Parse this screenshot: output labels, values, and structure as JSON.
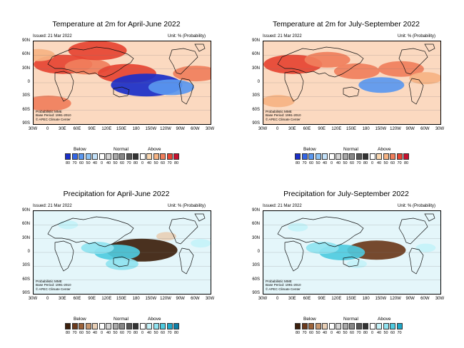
{
  "panels": [
    {
      "title": "Temperature at 2m for April-June 2022",
      "issued": "Issued: 21 Mar 2022",
      "unit": "Unit: % (Probability)",
      "footnote": [
        "Probabilistic MME",
        "Base Period: 1991-2010",
        "© APEC Climate Center"
      ],
      "variable": "temperature",
      "legend": {
        "below": "Below",
        "normal": "Normal",
        "above": "Above",
        "ticks": [
          "80",
          "70",
          "60",
          "50",
          "40",
          "0",
          "40",
          "50",
          "60",
          "70",
          "80",
          "0",
          "40",
          "50",
          "60",
          "70",
          "80"
        ],
        "colors": [
          "#1a2fc9",
          "#3366e6",
          "#5a98f0",
          "#8ec4f5",
          "#c4e2fa",
          "#ffffff",
          "#d6d6d6",
          "#aaaaaa",
          "#888888",
          "#555555",
          "#333333",
          "#ffffff",
          "#f9d7b0",
          "#f6b383",
          "#f07f5c",
          "#e64432",
          "#c8102e"
        ]
      },
      "map_data": {
        "patches": [
          {
            "lon": 30,
            "lat": 40,
            "anomaly": "above",
            "prob": 70
          },
          {
            "lon": 80,
            "lat": 35,
            "anomaly": "above",
            "prob": 60
          },
          {
            "lon": 100,
            "lat": 70,
            "anomaly": "above",
            "prob": 70
          },
          {
            "lon": 160,
            "lat": 20,
            "anomaly": "above",
            "prob": 70
          },
          {
            "lon": 200,
            "lat": -5,
            "anomaly": "below",
            "prob": 80
          },
          {
            "lon": 250,
            "lat": -10,
            "anomaly": "below",
            "prob": 60
          },
          {
            "lon": 300,
            "lat": 20,
            "anomaly": "above",
            "prob": 60
          },
          {
            "lon": 0,
            "lat": -45,
            "anomaly": "above",
            "prob": 60
          },
          {
            "lon": 340,
            "lat": 60,
            "anomaly": "above",
            "prob": 50
          }
        ]
      }
    },
    {
      "title": "Temperature at 2m for July-September 2022",
      "issued": "Issued: 21 Mar 2022",
      "unit": "Unit: % (Probability)",
      "footnote": [
        "Probabilistic MME",
        "Base Period: 1991-2010",
        "© APEC Climate Center"
      ],
      "variable": "temperature",
      "legend": {
        "below": "Below",
        "normal": "Normal",
        "above": "Above",
        "ticks": [
          "80",
          "70",
          "60",
          "50",
          "40",
          "0",
          "40",
          "50",
          "60",
          "70",
          "80",
          "0",
          "40",
          "50",
          "60",
          "70",
          "80"
        ],
        "colors": [
          "#1a2fc9",
          "#3366e6",
          "#5a98f0",
          "#8ec4f5",
          "#c4e2fa",
          "#ffffff",
          "#d6d6d6",
          "#aaaaaa",
          "#888888",
          "#555555",
          "#333333",
          "#ffffff",
          "#f9d7b0",
          "#f6b383",
          "#f07f5c",
          "#e64432",
          "#c8102e"
        ]
      },
      "map_data": {
        "patches": [
          {
            "lon": 30,
            "lat": 40,
            "anomaly": "above",
            "prob": 70
          },
          {
            "lon": 100,
            "lat": 50,
            "anomaly": "above",
            "prob": 60
          },
          {
            "lon": 160,
            "lat": 25,
            "anomaly": "above",
            "prob": 60
          },
          {
            "lon": 210,
            "lat": -5,
            "anomaly": "below",
            "prob": 60
          },
          {
            "lon": 250,
            "lat": 30,
            "anomaly": "above",
            "prob": 60
          },
          {
            "lon": 300,
            "lat": 10,
            "anomaly": "above",
            "prob": 50
          },
          {
            "lon": 0,
            "lat": -40,
            "anomaly": "above",
            "prob": 50
          }
        ]
      }
    },
    {
      "title": "Precipitation for April-June 2022",
      "issued": "Issued: 21 Mar 2022",
      "unit": "Unit: % (Probability)",
      "footnote": [
        "Probabilistic MME",
        "Base Period: 1991-2010",
        "© APEC Climate Center"
      ],
      "variable": "precipitation",
      "legend": {
        "below": "Below",
        "normal": "Normal",
        "above": "Above",
        "ticks": [
          "80",
          "70",
          "60",
          "50",
          "40",
          "0",
          "40",
          "50",
          "60",
          "70",
          "80",
          "0",
          "40",
          "50",
          "60",
          "70",
          "80"
        ],
        "colors": [
          "#3d1f0c",
          "#6b3a1c",
          "#9c6239",
          "#c79770",
          "#e8cfb6",
          "#ffffff",
          "#d6d6d6",
          "#aaaaaa",
          "#888888",
          "#555555",
          "#333333",
          "#ffffff",
          "#c4f2f8",
          "#8fe3f0",
          "#4fcbe0",
          "#1fa8c8",
          "#0d7fa8"
        ]
      },
      "map_data": {
        "patches": [
          {
            "lon": 190,
            "lat": 5,
            "anomaly": "below",
            "prob": 80
          },
          {
            "lon": 140,
            "lat": 0,
            "anomaly": "above",
            "prob": 60
          },
          {
            "lon": 100,
            "lat": 10,
            "anomaly": "above",
            "prob": 50
          },
          {
            "lon": 150,
            "lat": -25,
            "anomaly": "above",
            "prob": 50
          },
          {
            "lon": 40,
            "lat": 60,
            "anomaly": "above",
            "prob": 40
          },
          {
            "lon": 310,
            "lat": 20,
            "anomaly": "above",
            "prob": 40
          },
          {
            "lon": 240,
            "lat": 35,
            "anomaly": "below",
            "prob": 40
          }
        ]
      }
    },
    {
      "title": "Precipitation for July-September 2022",
      "issued": "Issued: 21 Mar 2022",
      "unit": "Unit: % (Probability)",
      "footnote": [
        "Probabilistic MME",
        "Base Period: 1991-2010",
        "© APEC Climate Center"
      ],
      "variable": "precipitation",
      "legend": {
        "below": "Below",
        "normal": "Normal",
        "above": "Above",
        "ticks": [
          "80",
          "70",
          "60",
          "50",
          "40",
          "0",
          "40",
          "50",
          "60",
          "70",
          "80",
          "0",
          "40",
          "50",
          "60",
          "70"
        ],
        "colors": [
          "#3d1f0c",
          "#6b3a1c",
          "#9c6239",
          "#c79770",
          "#e8cfb6",
          "#ffffff",
          "#d6d6d6",
          "#aaaaaa",
          "#888888",
          "#555555",
          "#333333",
          "#ffffff",
          "#c4f2f8",
          "#8fe3f0",
          "#4fcbe0",
          "#1fa8c8"
        ]
      },
      "map_data": {
        "patches": [
          {
            "lon": 200,
            "lat": 5,
            "anomaly": "below",
            "prob": 70
          },
          {
            "lon": 130,
            "lat": 0,
            "anomaly": "above",
            "prob": 60
          },
          {
            "lon": 90,
            "lat": 10,
            "anomaly": "above",
            "prob": 50
          },
          {
            "lon": 160,
            "lat": -25,
            "anomaly": "above",
            "prob": 40
          },
          {
            "lon": 40,
            "lat": 55,
            "anomaly": "above",
            "prob": 40
          },
          {
            "lon": 300,
            "lat": 10,
            "anomaly": "above",
            "prob": 40
          }
        ]
      }
    }
  ],
  "axes": {
    "lat_labels": [
      "90N",
      "60N",
      "30N",
      "0",
      "30S",
      "60S",
      "90S"
    ],
    "lon_labels": [
      "30W",
      "0",
      "30E",
      "60E",
      "90E",
      "120E",
      "150E",
      "180",
      "150W",
      "120W",
      "90W",
      "60W",
      "30W"
    ]
  }
}
